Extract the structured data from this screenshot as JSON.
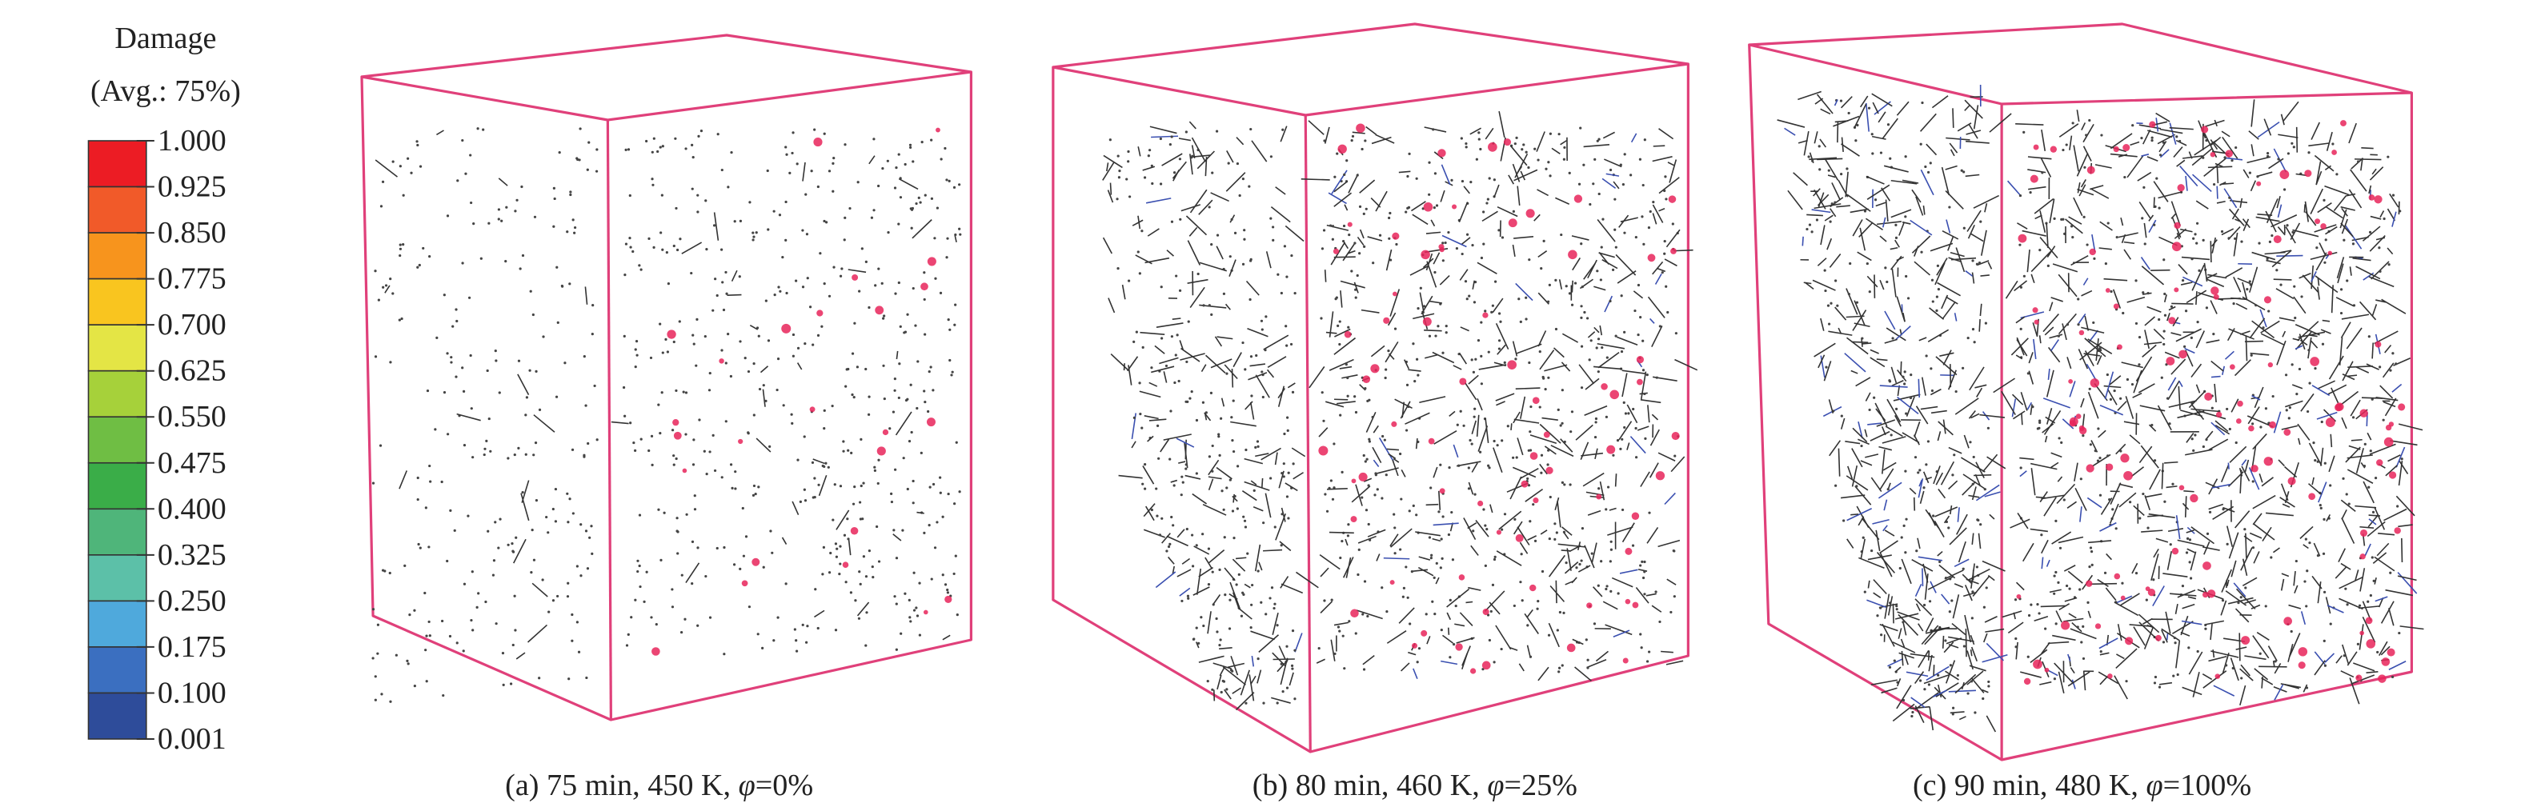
{
  "legend": {
    "title": "Damage",
    "subtitle": "(Avg.: 75%)",
    "labels": [
      "1.000",
      "0.925",
      "0.850",
      "0.775",
      "0.700",
      "0.625",
      "0.550",
      "0.475",
      "0.400",
      "0.325",
      "0.250",
      "0.175",
      "0.100",
      "0.001"
    ],
    "colors": [
      "#ec1c24",
      "#f15a29",
      "#f7941d",
      "#f9c51f",
      "#e4e545",
      "#a6d13a",
      "#6fbe44",
      "#3aad48",
      "#4fb57a",
      "#5cc0a8",
      "#4fa9dc",
      "#3b6fc0",
      "#2e4c9a"
    ]
  },
  "panels": [
    {
      "label_prefix": "(a) 75 min, 450 K, ",
      "symbol": "φ",
      "label_suffix": "=0%"
    },
    {
      "label_prefix": "(b) 80 min, 460 K, ",
      "symbol": "φ",
      "label_suffix": "=25%"
    },
    {
      "label_prefix": "(c) 90 min, 480 K, ",
      "symbol": "φ",
      "label_suffix": "=100%"
    }
  ]
}
